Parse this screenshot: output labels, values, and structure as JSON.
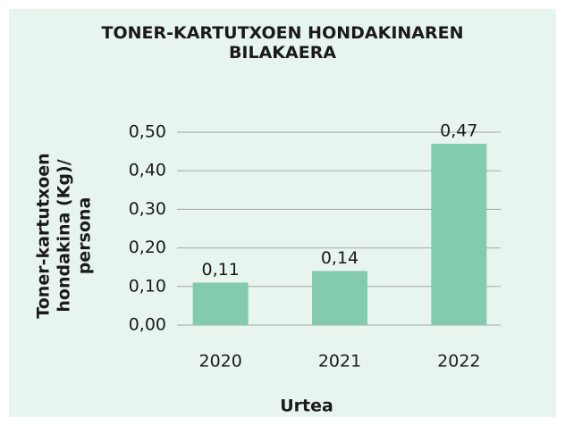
{
  "chart_data": {
    "type": "bar",
    "title": "TONER-KARTUTXOEN HONDAKINAREN BILAKAERA",
    "xlabel": "Urtea",
    "ylabel": "Toner-kartutxoen hondakina (Kg)/ persona",
    "categories": [
      "2020",
      "2021",
      "2022"
    ],
    "values": [
      0.11,
      0.14,
      0.47
    ],
    "value_labels": [
      "0,11",
      "0,14",
      "0,47"
    ],
    "color": "#82cbad",
    "ylim": [
      0,
      0.5
    ],
    "yticks": [
      {
        "value": 0,
        "label": "0,00"
      },
      {
        "value": 0.1,
        "label": "0,10"
      },
      {
        "value": 0.2,
        "label": "0,20"
      },
      {
        "value": 0.3,
        "label": "0,30"
      },
      {
        "value": 0.4,
        "label": "0,40"
      },
      {
        "value": 0.5,
        "label": "0,50"
      }
    ],
    "grid": true
  }
}
